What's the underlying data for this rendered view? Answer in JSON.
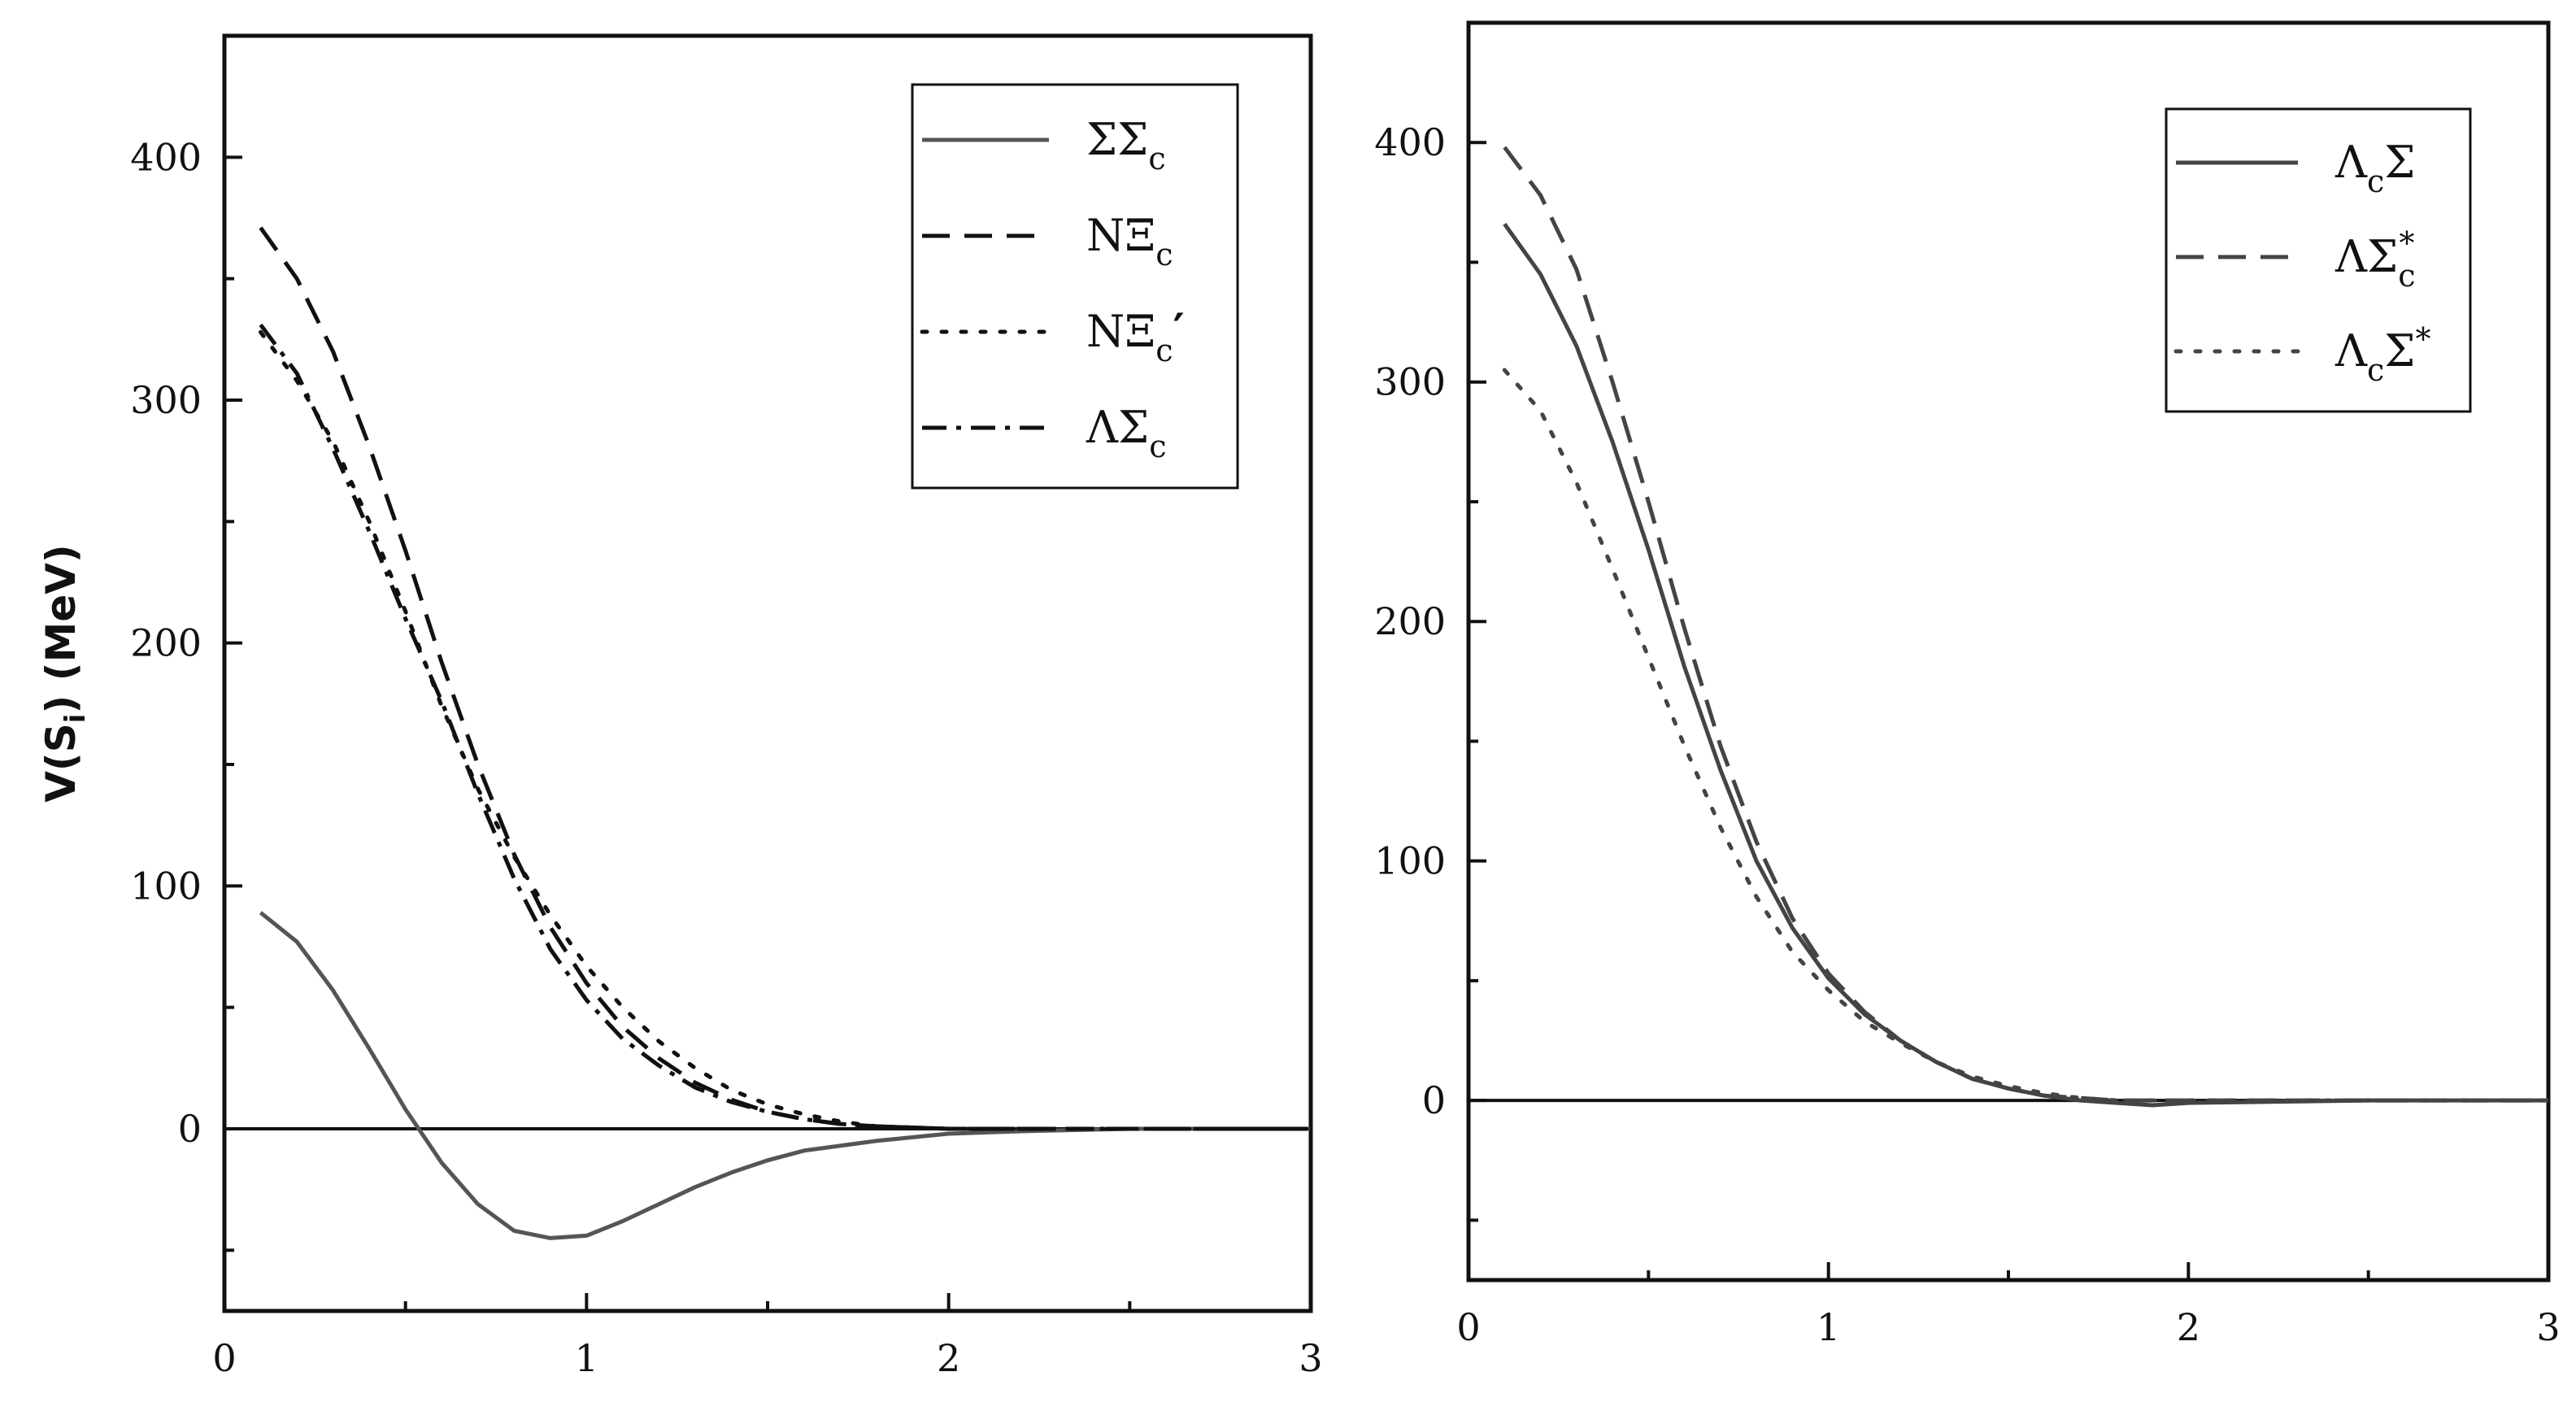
{
  "chart_data": [
    {
      "type": "line",
      "title": "",
      "xlabel": "",
      "ylabel": "V(S",
      "ylabel_sub": "i",
      "ylabel_tail": ") (MeV)",
      "xlim": [
        0,
        3
      ],
      "ylim": [
        -75,
        450
      ],
      "xticks": [
        0,
        1,
        2,
        3
      ],
      "xtick_labels": [
        "0",
        "1",
        "2",
        "3"
      ],
      "yticks": [
        0,
        100,
        200,
        300,
        400
      ],
      "ytick_labels": [
        "0",
        "100",
        "200",
        "300",
        "400"
      ],
      "grid": false,
      "legend_position": "top-right",
      "reference_line_y": 0,
      "series": [
        {
          "name": "ΣΣ",
          "sub": "c",
          "sup": "",
          "prime": "",
          "style": "solid",
          "color": "#555555",
          "x": [
            0.1,
            0.2,
            0.3,
            0.4,
            0.5,
            0.6,
            0.7,
            0.8,
            0.9,
            1.0,
            1.1,
            1.2,
            1.3,
            1.4,
            1.5,
            1.6,
            1.8,
            2.0,
            2.2,
            2.5,
            3.0
          ],
          "y": [
            89,
            77,
            57,
            33,
            8,
            -14,
            -31,
            -42,
            -45,
            -44,
            -38,
            -31,
            -24,
            -18,
            -13,
            -9,
            -5,
            -2,
            -1,
            0,
            0
          ]
        },
        {
          "name": "NΞ",
          "sub": "c",
          "sup": "",
          "prime": "",
          "style": "dashed",
          "color": "#111111",
          "x": [
            0.1,
            0.2,
            0.3,
            0.4,
            0.5,
            0.6,
            0.7,
            0.8,
            0.9,
            1.0,
            1.1,
            1.2,
            1.3,
            1.4,
            1.5,
            1.6,
            1.7,
            1.8,
            2.0,
            2.5,
            3.0
          ],
          "y": [
            371,
            350,
            320,
            281,
            238,
            192,
            150,
            113,
            83,
            60,
            42,
            29,
            19,
            12,
            7,
            4,
            2,
            1,
            0,
            0,
            0
          ]
        },
        {
          "name": "NΞ",
          "sub": "c",
          "sup": "",
          "prime": "′",
          "style": "dotted",
          "color": "#111111",
          "x": [
            0.1,
            0.2,
            0.3,
            0.4,
            0.5,
            0.6,
            0.7,
            0.8,
            0.9,
            1.0,
            1.1,
            1.2,
            1.3,
            1.4,
            1.5,
            1.6,
            1.7,
            1.8,
            2.0,
            2.5,
            3.0
          ],
          "y": [
            328,
            308,
            283,
            250,
            213,
            174,
            140,
            112,
            88,
            67,
            50,
            36,
            25,
            16,
            10,
            6,
            3,
            1,
            0,
            0,
            0
          ]
        },
        {
          "name": "ΛΣ",
          "sub": "c",
          "sup": "",
          "prime": "",
          "style": "dashdot",
          "color": "#111111",
          "x": [
            0.1,
            0.2,
            0.3,
            0.4,
            0.5,
            0.6,
            0.7,
            0.8,
            0.9,
            1.0,
            1.1,
            1.2,
            1.3,
            1.4,
            1.5,
            1.6,
            1.7,
            1.8,
            2.0,
            2.5,
            3.0
          ],
          "y": [
            331,
            311,
            280,
            246,
            210,
            176,
            138,
            103,
            74,
            53,
            37,
            26,
            17,
            11,
            7,
            4,
            2,
            1,
            0,
            0,
            0
          ]
        }
      ]
    },
    {
      "type": "line",
      "title": "",
      "xlabel": "",
      "ylabel": "",
      "xlim": [
        0,
        3
      ],
      "ylim": [
        -75,
        450
      ],
      "xticks": [
        0,
        1,
        2,
        3
      ],
      "xtick_labels": [
        "0",
        "1",
        "2",
        "3"
      ],
      "yticks": [
        0,
        100,
        200,
        300,
        400
      ],
      "ytick_labels": [
        "0",
        "100",
        "200",
        "300",
        "400"
      ],
      "grid": false,
      "legend_position": "top-right",
      "reference_line_y": 0,
      "series": [
        {
          "name": "Λ",
          "sub": "c",
          "tail": "Σ",
          "sup": "",
          "prime": "",
          "style": "solid",
          "color": "#444444",
          "x": [
            0.1,
            0.2,
            0.3,
            0.4,
            0.5,
            0.6,
            0.7,
            0.8,
            0.9,
            1.0,
            1.1,
            1.2,
            1.3,
            1.4,
            1.5,
            1.6,
            1.7,
            1.8,
            1.9,
            2.0,
            2.5,
            3.0
          ],
          "y": [
            366,
            345,
            315,
            275,
            230,
            181,
            138,
            100,
            72,
            51,
            36,
            25,
            16,
            9,
            5,
            2,
            0,
            -1,
            -2,
            -1,
            0,
            0
          ]
        },
        {
          "name": "ΛΣ",
          "sub": "c",
          "tail": "",
          "sup": "*",
          "prime": "",
          "style": "dashed",
          "color": "#444444",
          "x": [
            0.1,
            0.2,
            0.3,
            0.4,
            0.5,
            0.6,
            0.7,
            0.8,
            0.9,
            1.0,
            1.1,
            1.2,
            1.3,
            1.4,
            1.5,
            1.6,
            1.7,
            1.8,
            2.0,
            2.5,
            3.0
          ],
          "y": [
            398,
            378,
            347,
            300,
            250,
            197,
            148,
            108,
            76,
            53,
            37,
            25,
            16,
            9,
            5,
            2,
            1,
            0,
            0,
            0,
            0
          ]
        },
        {
          "name": "Λ",
          "sub": "c",
          "tail": "Σ",
          "sup": "*",
          "prime": "",
          "style": "dotted",
          "color": "#444444",
          "x": [
            0.1,
            0.2,
            0.3,
            0.4,
            0.5,
            0.6,
            0.7,
            0.8,
            0.9,
            1.0,
            1.1,
            1.2,
            1.3,
            1.4,
            1.5,
            1.6,
            1.7,
            1.8,
            2.0,
            2.5,
            3.0
          ],
          "y": [
            305,
            288,
            258,
            222,
            185,
            148,
            114,
            85,
            62,
            46,
            33,
            24,
            16,
            10,
            6,
            3,
            1,
            0,
            0,
            0,
            0
          ]
        }
      ]
    }
  ]
}
